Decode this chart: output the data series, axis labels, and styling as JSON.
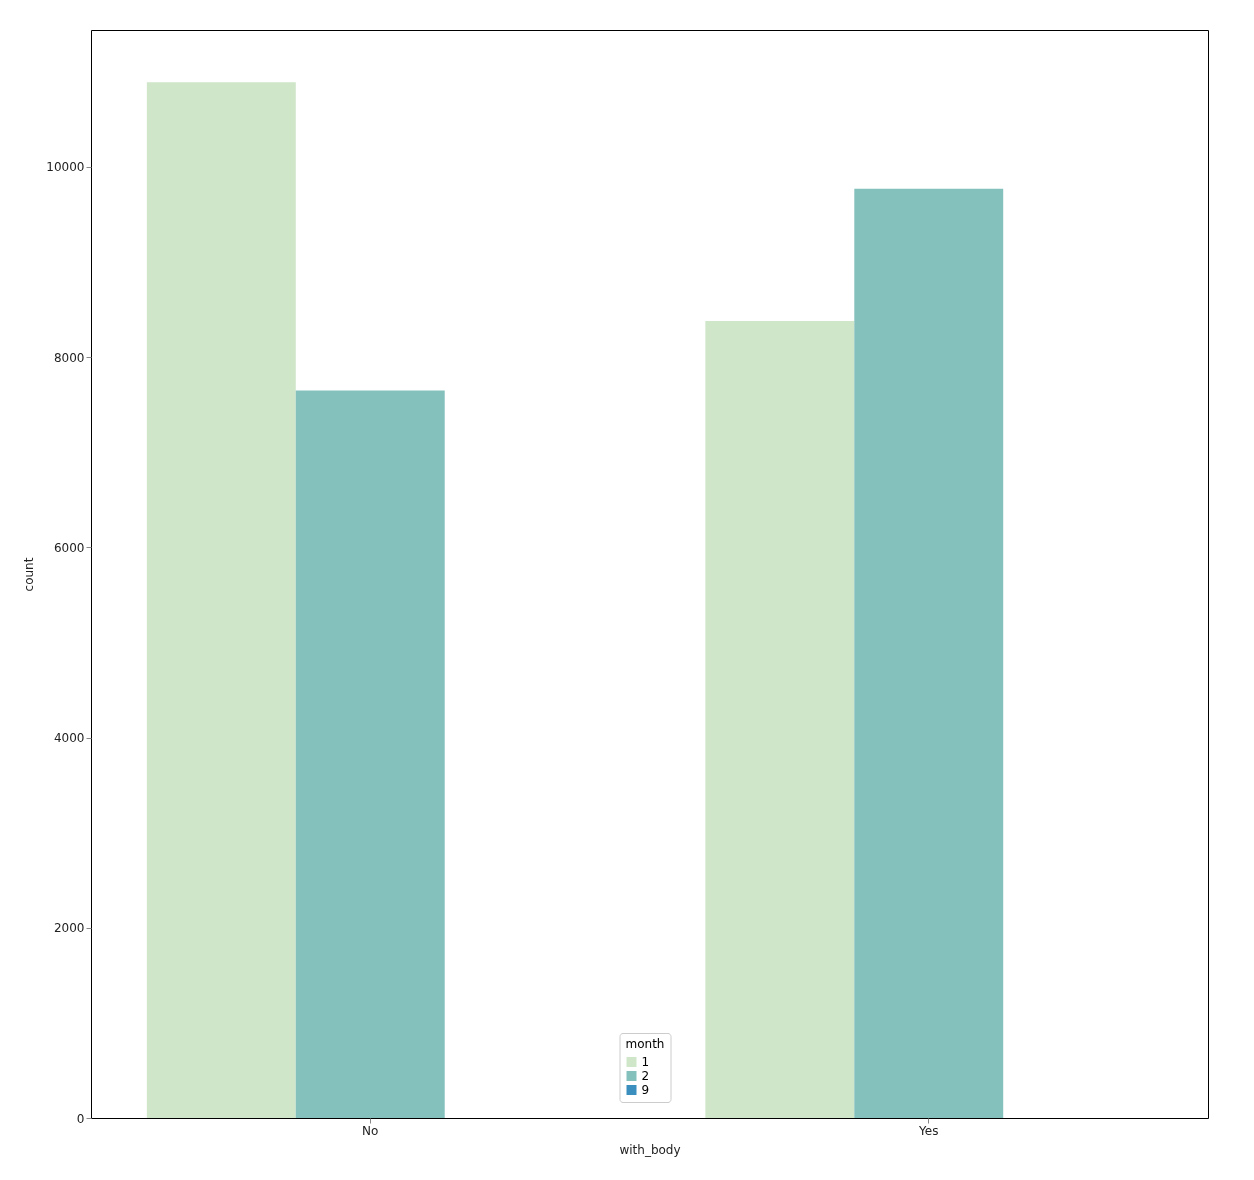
{
  "chart_data": {
    "type": "bar",
    "xlabel": "with_body",
    "ylabel": "count",
    "legend_title": "month",
    "categories": [
      "No",
      "Yes"
    ],
    "series": [
      {
        "name": "1",
        "color": "#cfe6c9",
        "values": [
          10890,
          8380
        ]
      },
      {
        "name": "2",
        "color": "#85c1bc",
        "values": [
          7650,
          9770
        ]
      },
      {
        "name": "9",
        "color": "#3a8fbe",
        "values": [
          0,
          0
        ]
      }
    ],
    "ylim": [
      0,
      11440
    ],
    "yticks": [
      0,
      2000,
      4000,
      6000,
      8000,
      10000
    ],
    "grid": false,
    "legend": "bottom"
  }
}
